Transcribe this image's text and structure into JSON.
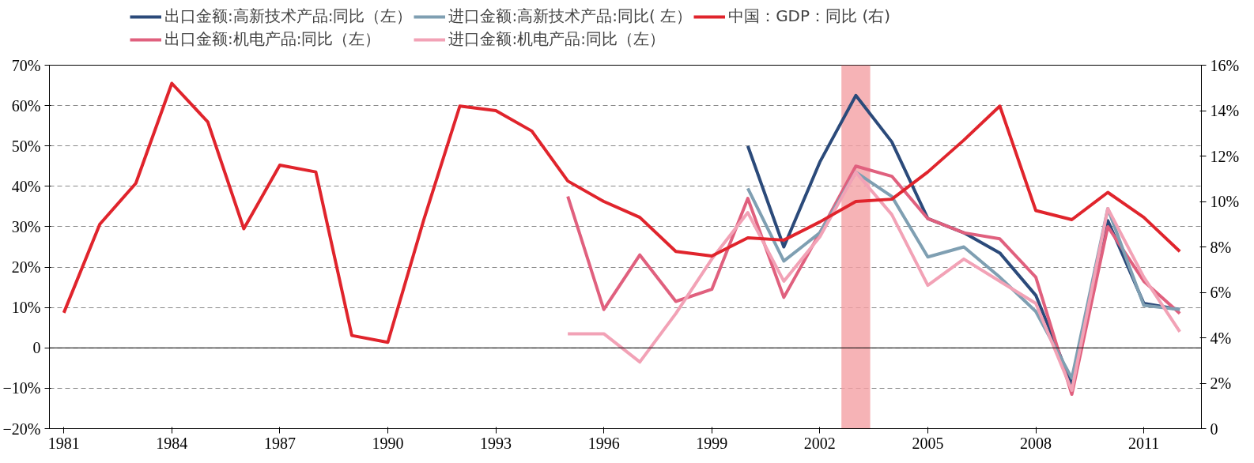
{
  "chart_data": {
    "type": "line",
    "x": [
      1981,
      1982,
      1983,
      1984,
      1985,
      1986,
      1987,
      1988,
      1989,
      1990,
      1991,
      1992,
      1993,
      1994,
      1995,
      1996,
      1997,
      1998,
      1999,
      2000,
      2001,
      2002,
      2003,
      2004,
      2005,
      2006,
      2007,
      2008,
      2009,
      2010,
      2011,
      2012
    ],
    "series": [
      {
        "name": "出口金额:高新技术产品:同比（左）",
        "color": "#2b4a7a",
        "x": [
          2000,
          2001,
          2002,
          2003,
          2004,
          2005,
          2006,
          2007,
          2008,
          2009,
          2010,
          2011,
          2012
        ],
        "values": [
          50,
          25,
          46,
          62.5,
          51,
          32,
          28.5,
          23.5,
          13,
          -9,
          31.5,
          11,
          9.5
        ]
      },
      {
        "name": "出口金额:机电产品:同比（左）",
        "color": "#e0607e",
        "x": [
          1995,
          1996,
          1997,
          1998,
          1999,
          2000,
          2001,
          2002,
          2003,
          2004,
          2005,
          2006,
          2007,
          2008,
          2009,
          2010,
          2011,
          2012
        ],
        "values": [
          37.5,
          9.5,
          23,
          11.5,
          14.5,
          37,
          12.5,
          28.5,
          45,
          42.5,
          32,
          28.5,
          27,
          17.5,
          -11.5,
          30,
          16.5,
          8.5
        ]
      },
      {
        "name": "进口金额:高新技术产品:同比( 左）",
        "color": "#7f9fb2",
        "x": [
          2000,
          2001,
          2002,
          2003,
          2004,
          2005,
          2006,
          2007,
          2008,
          2009,
          2010,
          2011,
          2012
        ],
        "values": [
          39.5,
          21.5,
          28.5,
          43.5,
          37.5,
          22.5,
          25,
          17.5,
          9,
          -7.5,
          34.5,
          10.5,
          9.5
        ]
      },
      {
        "name": "进口金额:机电产品:同比（左）",
        "color": "#f2a2b6",
        "x": [
          1995,
          1996,
          1997,
          1998,
          1999,
          2000,
          2001,
          2002,
          2003,
          2004,
          2005,
          2006,
          2007,
          2008,
          2009,
          2010,
          2011,
          2012
        ],
        "values": [
          3.5,
          3.5,
          -3.5,
          8.5,
          22,
          33.5,
          16.5,
          27.5,
          43.5,
          33,
          15.5,
          22,
          16.5,
          11,
          -10.5,
          34.5,
          17.5,
          4
        ]
      },
      {
        "name": "中国：GDP：同比 (右)",
        "color": "#e0242c",
        "axis": "y2",
        "values": [
          5.1,
          9.0,
          10.8,
          15.2,
          13.5,
          8.8,
          11.6,
          11.3,
          4.1,
          3.8,
          9.2,
          14.2,
          14.0,
          13.1,
          10.9,
          10.0,
          9.3,
          7.8,
          7.6,
          8.4,
          8.3,
          9.1,
          10.0,
          10.1,
          11.3,
          12.7,
          14.2,
          9.6,
          9.2,
          10.4,
          9.3,
          7.8
        ]
      }
    ],
    "xlim": [
      1980.6,
      2012.6
    ],
    "xticks": [
      1981,
      1984,
      1987,
      1990,
      1993,
      1996,
      1999,
      2002,
      2005,
      2008,
      2011
    ],
    "ylim": [
      -20,
      70
    ],
    "yticks": [
      {
        "value": -20,
        "label": "−20%"
      },
      {
        "value": -10,
        "label": "−10%"
      },
      {
        "value": 0,
        "label": "0"
      },
      {
        "value": 10,
        "label": "10%"
      },
      {
        "value": 20,
        "label": "20%"
      },
      {
        "value": 30,
        "label": "30%"
      },
      {
        "value": 40,
        "label": "40%"
      },
      {
        "value": 50,
        "label": "50%"
      },
      {
        "value": 60,
        "label": "60%"
      },
      {
        "value": 70,
        "label": "70%"
      }
    ],
    "y2lim": [
      0,
      16
    ],
    "y2ticks": [
      {
        "value": 0,
        "label": "0"
      },
      {
        "value": 2,
        "label": "2%"
      },
      {
        "value": 4,
        "label": "4%"
      },
      {
        "value": 6,
        "label": "6%"
      },
      {
        "value": 8,
        "label": "8%"
      },
      {
        "value": 10,
        "label": "10%"
      },
      {
        "value": 12,
        "label": "12%"
      },
      {
        "value": 14,
        "label": "14%"
      },
      {
        "value": 16,
        "label": "16%"
      }
    ],
    "bands": [
      {
        "axis": "x",
        "from": 2002.6,
        "to": 2003.4,
        "color": "#f4a0a4"
      }
    ],
    "ref_lines": [
      {
        "axis": "y",
        "value": 0,
        "color": "#000000",
        "line_style": "solid"
      }
    ],
    "grid": "y",
    "line_style": "solid",
    "marker": "none",
    "legend": "top"
  }
}
